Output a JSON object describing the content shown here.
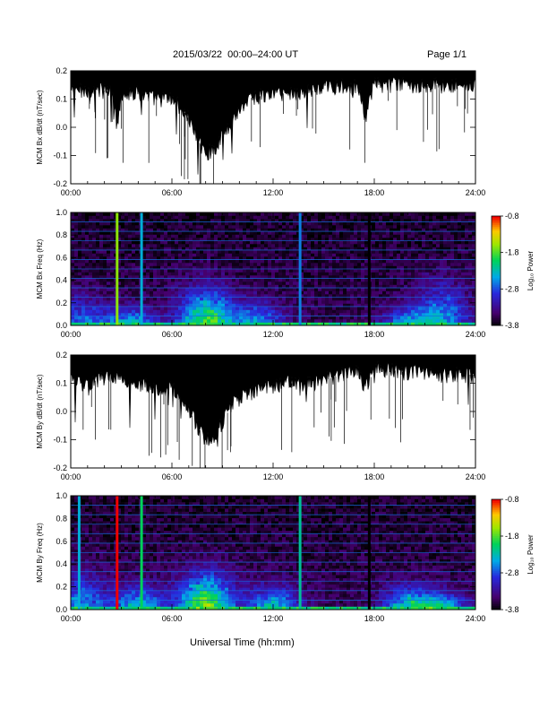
{
  "header": {
    "title": "2015/03/22  00:00–24:00 UT",
    "page_label": "Page 1/1"
  },
  "footer": {
    "xlabel": "Universal Time (hh:mm)"
  },
  "chart_data": [
    {
      "type": "line",
      "ylabel": "MCM Bx dB/dt (nT/sec)",
      "xlim": [
        0,
        24
      ],
      "ylim": [
        -0.2,
        0.2
      ],
      "x_ticks": [
        "00:00",
        "06:00",
        "12:00",
        "18:00",
        "24:00"
      ],
      "y_ticks": [
        "-0.2",
        "-0.1",
        "0.0",
        "0.1",
        "0.2"
      ],
      "series": [
        {
          "x": [
            0,
            0.5,
            1,
            1.5,
            2,
            2.5,
            2.75,
            3,
            3.5,
            4,
            4.5,
            5,
            5.5,
            6,
            6.5,
            7,
            7.5,
            8,
            8.5,
            9,
            9.5,
            10,
            10.5,
            11,
            11.5,
            12,
            12.5,
            13,
            13.5,
            14,
            14.5,
            15,
            15.5,
            16,
            16.5,
            17,
            17.5,
            18,
            18.5,
            19,
            19.5,
            20,
            20.5,
            21,
            21.5,
            22,
            22.5,
            23,
            23.5,
            24
          ],
          "y": [
            0.13,
            0.13,
            0.13,
            0.13,
            0.13,
            0.12,
            0.0,
            0.12,
            0.12,
            0.12,
            0.11,
            0.1,
            0.1,
            0.1,
            0.07,
            0.03,
            -0.04,
            -0.09,
            -0.08,
            -0.03,
            0.02,
            0.06,
            0.1,
            0.11,
            0.11,
            0.12,
            0.12,
            0.12,
            0.12,
            0.13,
            0.13,
            0.14,
            0.14,
            0.15,
            0.15,
            0.14,
            0.04,
            0.15,
            0.15,
            0.15,
            0.15,
            0.15,
            0.15,
            0.15,
            0.15,
            0.15,
            0.15,
            0.15,
            0.15,
            0.15
          ]
        }
      ]
    },
    {
      "type": "heatmap",
      "ylabel": "MCM Bx Freq (Hz)",
      "colorbar_label": "Log₁₀ Power",
      "colorbar_ticks": [
        "-0.8",
        "-1.8",
        "-2.8",
        "-3.8"
      ],
      "zlim": [
        -3.8,
        -0.8
      ],
      "xlim": [
        0,
        24
      ],
      "ylim": [
        0,
        1.0
      ],
      "x_ticks": [
        "00:00",
        "06:00",
        "12:00",
        "18:00",
        "24:00"
      ],
      "y_ticks": [
        "0.0",
        "0.2",
        "0.4",
        "0.6",
        "0.8",
        "1.0"
      ],
      "harmonic_lines_hz": [
        0.083,
        0.167,
        0.25,
        0.333,
        0.417,
        0.5,
        0.583,
        0.667,
        0.75,
        0.833,
        0.917,
        1.0
      ],
      "vertical_events": [
        {
          "t": 2.75,
          "level": -1.6
        },
        {
          "t": 4.2,
          "level": -2.4
        },
        {
          "t": 13.6,
          "level": -2.6
        },
        {
          "t": 17.7,
          "level": -3.8
        }
      ],
      "activity": [
        {
          "t": 0.5,
          "peak_hz": 0.25,
          "level": -2.8
        },
        {
          "t": 3.5,
          "peak_hz": 0.15,
          "level": -2.4
        },
        {
          "t": 8.0,
          "peak_hz": 0.3,
          "level": -1.8
        },
        {
          "t": 11.0,
          "peak_hz": 0.2,
          "level": -2.6
        },
        {
          "t": 20.0,
          "peak_hz": 0.15,
          "level": -2.7
        },
        {
          "t": 22.0,
          "peak_hz": 0.35,
          "level": -2.6
        }
      ]
    },
    {
      "type": "line",
      "ylabel": "MCM By dB/dt (nT/sec)",
      "xlim": [
        0,
        24
      ],
      "ylim": [
        -0.2,
        0.2
      ],
      "x_ticks": [
        "00:00",
        "06:00",
        "12:00",
        "18:00",
        "24:00"
      ],
      "y_ticks": [
        "-0.2",
        "-0.1",
        "0.0",
        "0.1",
        "0.2"
      ],
      "series": [
        {
          "x": [
            0,
            0.5,
            1,
            1.5,
            2,
            2.5,
            3,
            3.5,
            4,
            4.5,
            5,
            5.5,
            6,
            6.5,
            7,
            7.5,
            8,
            8.5,
            9,
            9.5,
            10,
            10.5,
            11,
            11.5,
            12,
            12.5,
            13,
            13.5,
            14,
            14.5,
            15,
            15.5,
            16,
            16.5,
            17,
            17.5,
            18,
            18.5,
            19,
            19.5,
            20,
            20.5,
            21,
            21.5,
            22,
            22.5,
            23,
            23.5,
            24
          ],
          "y": [
            0.11,
            0.1,
            0.1,
            0.11,
            0.12,
            0.13,
            0.12,
            0.11,
            0.1,
            0.09,
            0.08,
            0.08,
            0.08,
            0.05,
            0.01,
            -0.05,
            -0.1,
            -0.09,
            -0.04,
            0.02,
            0.05,
            0.06,
            0.07,
            0.08,
            0.09,
            0.1,
            0.1,
            0.1,
            0.1,
            0.1,
            0.11,
            0.12,
            0.13,
            0.14,
            0.14,
            0.08,
            0.15,
            0.15,
            0.15,
            0.14,
            0.14,
            0.14,
            0.14,
            0.14,
            0.13,
            0.13,
            0.13,
            0.13,
            0.13
          ]
        }
      ]
    },
    {
      "type": "heatmap",
      "ylabel": "MCM By Freq (Hz)",
      "colorbar_label": "Log₁₀ Power",
      "colorbar_ticks": [
        "-0.8",
        "-1.8",
        "-2.8",
        "-3.8"
      ],
      "zlim": [
        -3.8,
        -0.8
      ],
      "xlim": [
        0,
        24
      ],
      "ylim": [
        0,
        1.0
      ],
      "x_ticks": [
        "00:00",
        "06:00",
        "12:00",
        "18:00",
        "24:00"
      ],
      "y_ticks": [
        "0.0",
        "0.2",
        "0.4",
        "0.6",
        "0.8",
        "1.0"
      ],
      "harmonic_lines_hz": [
        0.083,
        0.167,
        0.25,
        0.333,
        0.417,
        0.5,
        0.583,
        0.667,
        0.75,
        0.833,
        0.917,
        1.0
      ],
      "vertical_events": [
        {
          "t": 0.5,
          "level": -2.4
        },
        {
          "t": 2.75,
          "level": -0.8
        },
        {
          "t": 4.2,
          "level": -2.0
        },
        {
          "t": 13.6,
          "level": -2.2
        },
        {
          "t": 17.7,
          "level": -3.8
        }
      ],
      "activity": [
        {
          "t": 0.5,
          "peak_hz": 0.3,
          "level": -2.6
        },
        {
          "t": 4.0,
          "peak_hz": 0.2,
          "level": -2.4
        },
        {
          "t": 8.0,
          "peak_hz": 0.3,
          "level": -1.6
        },
        {
          "t": 12.0,
          "peak_hz": 0.2,
          "level": -2.4
        },
        {
          "t": 20.0,
          "peak_hz": 0.2,
          "level": -2.4
        },
        {
          "t": 22.0,
          "peak_hz": 0.15,
          "level": -2.5
        }
      ]
    }
  ]
}
